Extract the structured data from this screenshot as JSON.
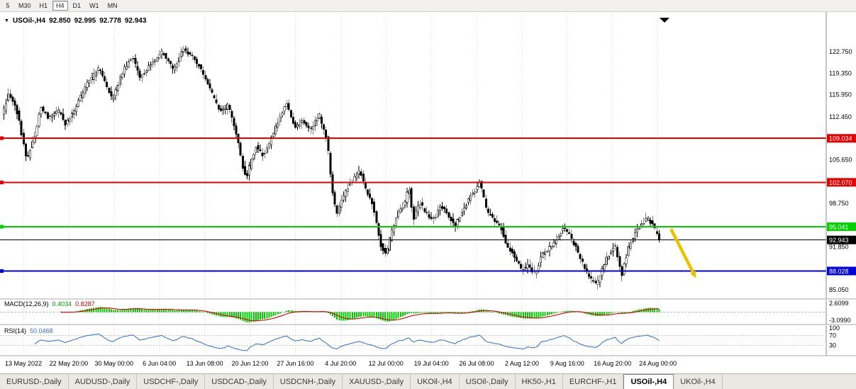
{
  "toolbar": {
    "timeframes": [
      {
        "label": "5",
        "active": false
      },
      {
        "label": "M30",
        "active": false
      },
      {
        "label": "H1",
        "active": false
      },
      {
        "label": "H4",
        "active": true
      },
      {
        "label": "D1",
        "active": false
      },
      {
        "label": "W1",
        "active": false
      },
      {
        "label": "MN",
        "active": false
      }
    ]
  },
  "header": {
    "symbol": "USOil-,H4",
    "open": "92.850",
    "high": "92.995",
    "low": "92.778",
    "close": "92.943"
  },
  "chart_data": {
    "type": "candlestick",
    "title": "USOil-,H4",
    "bar_count": 300,
    "x_labels": [
      "13 May 2022",
      "22 May 20:00",
      "30 May 00:00",
      "6 Jun 04:00",
      "13 Jun 08:00",
      "20 Jun 12:00",
      "27 Jun 16:00",
      "4 Jul 20:00",
      "12 Jul 00:00",
      "19 Jul 04:00",
      "26 Jul 08:00",
      "2 Aug 12:00",
      "9 Aug 16:00",
      "16 Aug 20:00",
      "24 Aug 00:00"
    ],
    "y_ticks": [
      {
        "label": "122.750",
        "price": 122.75
      },
      {
        "label": "119.350",
        "price": 119.35
      },
      {
        "label": "115.950",
        "price": 115.95
      },
      {
        "label": "112.450",
        "price": 112.45
      },
      {
        "label": "105.650",
        "price": 105.65
      },
      {
        "label": "98.750",
        "price": 98.75
      },
      {
        "label": "91.850",
        "price": 91.85
      },
      {
        "label": "85.050",
        "price": 85.05
      }
    ],
    "levels": [
      {
        "price": 109.034,
        "label": "109.034",
        "color": "#e60000",
        "thickness": 2,
        "role": "resistance"
      },
      {
        "price": 102.07,
        "label": "102.070",
        "color": "#e60000",
        "thickness": 2,
        "role": "resistance"
      },
      {
        "price": 95.041,
        "label": "95.041",
        "color": "#00d200",
        "thickness": 2,
        "role": "support"
      },
      {
        "price": 88.028,
        "label": "88.028",
        "color": "#0000dd",
        "thickness": 2,
        "role": "support"
      },
      {
        "price": 92.943,
        "label": "92.943",
        "color": "#000000",
        "thickness": 1,
        "role": "current-price"
      }
    ],
    "price_path_anchors": [
      [
        0.0,
        112.5
      ],
      [
        0.011,
        116.2
      ],
      [
        0.024,
        113.0
      ],
      [
        0.038,
        105.6
      ],
      [
        0.05,
        109.5
      ],
      [
        0.059,
        114.1
      ],
      [
        0.07,
        112.4
      ],
      [
        0.086,
        113.5
      ],
      [
        0.097,
        111.3
      ],
      [
        0.113,
        114.1
      ],
      [
        0.129,
        117.5
      ],
      [
        0.148,
        120.2
      ],
      [
        0.16,
        117.0
      ],
      [
        0.168,
        115.2
      ],
      [
        0.184,
        119.7
      ],
      [
        0.199,
        121.9
      ],
      [
        0.21,
        118.6
      ],
      [
        0.227,
        120.8
      ],
      [
        0.245,
        122.8
      ],
      [
        0.261,
        119.9
      ],
      [
        0.276,
        123.2
      ],
      [
        0.287,
        122.2
      ],
      [
        0.302,
        120.3
      ],
      [
        0.318,
        116.5
      ],
      [
        0.333,
        113.2
      ],
      [
        0.344,
        114.3
      ],
      [
        0.356,
        110.2
      ],
      [
        0.366,
        104.8
      ],
      [
        0.372,
        102.9
      ],
      [
        0.387,
        107.9
      ],
      [
        0.398,
        106.3
      ],
      [
        0.41,
        109.1
      ],
      [
        0.425,
        113.0
      ],
      [
        0.433,
        114.4
      ],
      [
        0.447,
        110.7
      ],
      [
        0.458,
        112.0
      ],
      [
        0.469,
        110.2
      ],
      [
        0.483,
        112.8
      ],
      [
        0.495,
        108.5
      ],
      [
        0.503,
        100.5
      ],
      [
        0.509,
        96.9
      ],
      [
        0.522,
        100.6
      ],
      [
        0.533,
        102.3
      ],
      [
        0.544,
        104.0
      ],
      [
        0.555,
        100.6
      ],
      [
        0.565,
        98.4
      ],
      [
        0.576,
        92.3
      ],
      [
        0.584,
        90.4
      ],
      [
        0.592,
        93.9
      ],
      [
        0.603,
        97.3
      ],
      [
        0.613,
        98.6
      ],
      [
        0.619,
        101.8
      ],
      [
        0.626,
        96.3
      ],
      [
        0.636,
        98.9
      ],
      [
        0.646,
        97.0
      ],
      [
        0.657,
        96.2
      ],
      [
        0.668,
        98.4
      ],
      [
        0.679,
        96.8
      ],
      [
        0.689,
        95.1
      ],
      [
        0.7,
        97.3
      ],
      [
        0.711,
        99.5
      ],
      [
        0.721,
        100.9
      ],
      [
        0.727,
        102.3
      ],
      [
        0.738,
        97.3
      ],
      [
        0.749,
        96.2
      ],
      [
        0.759,
        95.0
      ],
      [
        0.768,
        92.2
      ],
      [
        0.779,
        90.6
      ],
      [
        0.79,
        88.3
      ],
      [
        0.8,
        88.9
      ],
      [
        0.811,
        87.6
      ],
      [
        0.822,
        90.6
      ],
      [
        0.833,
        91.7
      ],
      [
        0.844,
        92.8
      ],
      [
        0.854,
        95.2
      ],
      [
        0.865,
        93.4
      ],
      [
        0.876,
        91.1
      ],
      [
        0.887,
        88.3
      ],
      [
        0.897,
        86.6
      ],
      [
        0.905,
        86.0
      ],
      [
        0.915,
        88.9
      ],
      [
        0.923,
        90.6
      ],
      [
        0.933,
        92.2
      ],
      [
        0.943,
        87.4
      ],
      [
        0.953,
        91.7
      ],
      [
        0.963,
        93.9
      ],
      [
        0.974,
        95.6
      ],
      [
        0.983,
        96.4
      ],
      [
        0.991,
        95.1
      ],
      [
        1.0,
        92.94
      ]
    ]
  },
  "indicators": {
    "macd": {
      "name": "MACD(12,26,9)",
      "value_main": "0.4034",
      "value_signal": "0.8287",
      "axis_labels": [
        "2.6099",
        "-3.0990"
      ],
      "histogram_color": "#00cc00",
      "signal_color": "#dd0000"
    },
    "rsi": {
      "name": "RSI(14)",
      "value": "50.0468",
      "axis_labels": [
        "100",
        "70",
        "30"
      ],
      "levels": [
        70,
        30
      ],
      "line_color": "#3c78cc"
    }
  },
  "objects": {
    "trend_arrow": {
      "color": "#e8c400",
      "direction": "down-right"
    },
    "top_marker": {
      "shape": "down-triangle",
      "color": "#000000"
    }
  },
  "tabs": [
    {
      "label": "EURUSD-,Daily",
      "active": false
    },
    {
      "label": "AUDUSD-,Daily",
      "active": false
    },
    {
      "label": "USDCHF-,Daily",
      "active": false
    },
    {
      "label": "USDCAD-,Daily",
      "active": false
    },
    {
      "label": "USDCNH-,Daily",
      "active": false
    },
    {
      "label": "XAUUSD-,Daily",
      "active": false
    },
    {
      "label": "UKOil-,H4",
      "active": false
    },
    {
      "label": "USOil-,Daily",
      "active": false
    },
    {
      "label": "HK50-,H1",
      "active": false
    },
    {
      "label": "EURCHF-,H1",
      "active": false
    },
    {
      "label": "USOil-,H4",
      "active": true
    },
    {
      "label": "UKOil-,H4",
      "active": false
    }
  ]
}
